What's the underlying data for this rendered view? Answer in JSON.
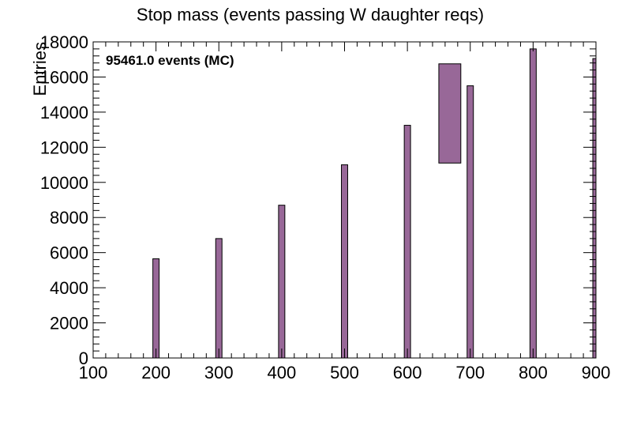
{
  "colors": {
    "bar_fill": "#986898",
    "bar_stroke": "#000000",
    "axis": "#000000",
    "background": "#ffffff"
  },
  "chart_data": {
    "type": "bar",
    "title": "Stop mass (events passing W daughter reqs)",
    "xlabel": "",
    "ylabel": "Entries",
    "xlim": [
      100,
      900
    ],
    "ylim": [
      0,
      18000
    ],
    "x_ticks": [
      100,
      200,
      300,
      400,
      500,
      600,
      700,
      800,
      900
    ],
    "y_ticks": [
      0,
      2000,
      4000,
      6000,
      8000,
      10000,
      12000,
      14000,
      16000,
      18000
    ],
    "annotation": "95461.0 events (MC)",
    "bars": [
      {
        "x_low": 195,
        "x_high": 205,
        "value": 5650
      },
      {
        "x_low": 295,
        "x_high": 305,
        "value": 6800
      },
      {
        "x_low": 395,
        "x_high": 405,
        "value": 8700
      },
      {
        "x_low": 495,
        "x_high": 505,
        "value": 11000
      },
      {
        "x_low": 595,
        "x_high": 605,
        "value": 13250
      },
      {
        "x_low": 695,
        "x_high": 705,
        "value": 15500
      },
      {
        "x_low": 795,
        "x_high": 805,
        "value": 17600
      },
      {
        "x_low": 895,
        "x_high": 905,
        "value": 17050
      }
    ],
    "legend_box": {
      "x_low": 650,
      "x_high": 685,
      "y_low": 11100,
      "y_high": 16750
    }
  }
}
